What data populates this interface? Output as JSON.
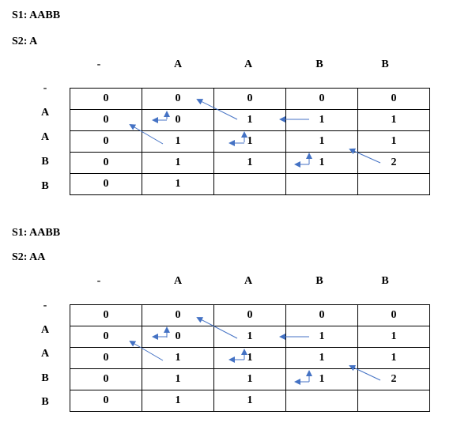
{
  "sections": [
    {
      "s1": "S1: AABB",
      "s2": "S2: A",
      "col_headers": [
        "-",
        "A",
        "A",
        "B",
        "B"
      ],
      "row_headers": [
        "-",
        "A",
        "A",
        "B",
        "B"
      ],
      "rows": [
        [
          "0",
          "0",
          "0",
          "0",
          "0"
        ],
        [
          "0",
          "0",
          "1",
          "1",
          "1"
        ],
        [
          "0",
          "1",
          "1",
          "1",
          "1"
        ],
        [
          "0",
          "1",
          "1",
          "1",
          "2"
        ],
        [
          "0",
          "1",
          "",
          "",
          ""
        ]
      ]
    },
    {
      "s1": "S1: AABB",
      "s2": "S2: AA",
      "col_headers": [
        "-",
        "A",
        "A",
        "B",
        "B"
      ],
      "row_headers": [
        "-",
        "A",
        "A",
        "B",
        "B"
      ],
      "rows": [
        [
          "0",
          "0",
          "0",
          "0",
          "0"
        ],
        [
          "0",
          "0",
          "1",
          "1",
          "1"
        ],
        [
          "0",
          "1",
          "1",
          "1",
          "1"
        ],
        [
          "0",
          "1",
          "1",
          "1",
          "2"
        ],
        [
          "0",
          "1",
          "1",
          "",
          ""
        ]
      ]
    }
  ],
  "colors": {
    "arrow": "#4472C4"
  }
}
